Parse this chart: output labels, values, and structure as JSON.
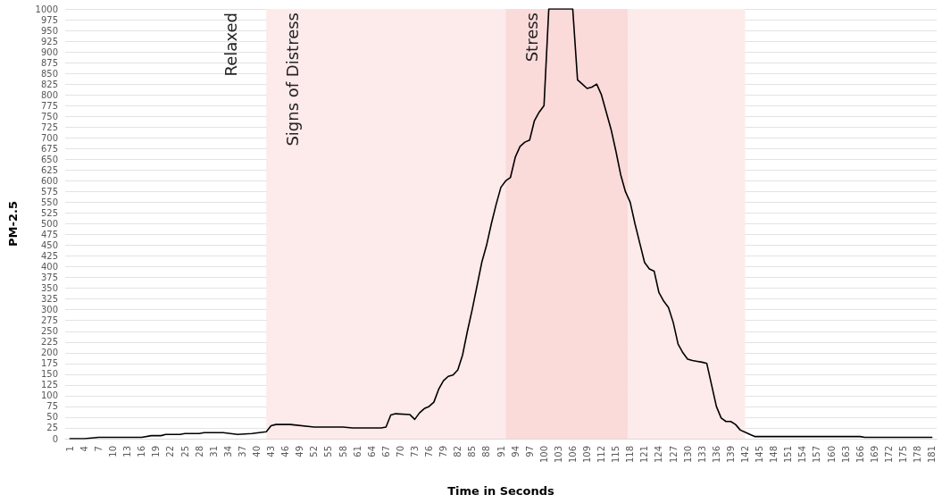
{
  "chart_data": {
    "type": "line",
    "xlabel": "Time in Seconds",
    "ylabel": "PM-2.5",
    "x": [
      1,
      4,
      7,
      16,
      18,
      20,
      21,
      24,
      25,
      28,
      29,
      33,
      36,
      39,
      42,
      43,
      44,
      47,
      52,
      58,
      60,
      66,
      67,
      68,
      69,
      72,
      73,
      74,
      75,
      76,
      77,
      78,
      79,
      80,
      81,
      82,
      83,
      84,
      85,
      86,
      87,
      88,
      89,
      90,
      91,
      92,
      93,
      94,
      95,
      96,
      97,
      98,
      99,
      100,
      101,
      106,
      107,
      108,
      109,
      110,
      111,
      112,
      113,
      114,
      115,
      116,
      117,
      118,
      119,
      120,
      121,
      122,
      123,
      124,
      125,
      126,
      127,
      128,
      129,
      130,
      131,
      132,
      133,
      134,
      135,
      136,
      137,
      138,
      139,
      140,
      141,
      142,
      143,
      144,
      166,
      167,
      181
    ],
    "series": [
      {
        "color": "#000000",
        "values": [
          0,
          0,
          3,
          3,
          7,
          7,
          10,
          10,
          12,
          12,
          14,
          14,
          10,
          12,
          16,
          30,
          33,
          33,
          27,
          27,
          25,
          25,
          27,
          55,
          58,
          56,
          45,
          60,
          70,
          75,
          85,
          115,
          135,
          145,
          148,
          160,
          195,
          250,
          300,
          355,
          410,
          450,
          500,
          545,
          585,
          600,
          608,
          655,
          680,
          690,
          695,
          740,
          760,
          775,
          1000,
          1000,
          835,
          825,
          815,
          818,
          825,
          800,
          760,
          720,
          670,
          615,
          575,
          550,
          500,
          455,
          410,
          395,
          390,
          340,
          320,
          305,
          270,
          220,
          200,
          185,
          182,
          180,
          178,
          175,
          125,
          75,
          48,
          40,
          40,
          33,
          20,
          15,
          10,
          5,
          5,
          3,
          3
        ]
      }
    ],
    "xlim": [
      0,
      182
    ],
    "xticks": [
      1,
      4,
      7,
      10,
      13,
      16,
      19,
      22,
      25,
      28,
      31,
      34,
      37,
      40,
      43,
      46,
      49,
      52,
      55,
      58,
      61,
      64,
      67,
      70,
      73,
      76,
      79,
      82,
      85,
      88,
      91,
      94,
      97,
      100,
      103,
      106,
      109,
      112,
      115,
      118,
      121,
      124,
      127,
      130,
      133,
      136,
      139,
      142,
      145,
      148,
      151,
      154,
      157,
      160,
      163,
      166,
      169,
      172,
      175,
      178,
      181
    ],
    "ylim": [
      0,
      1000
    ],
    "yticks": [
      0,
      25,
      50,
      75,
      100,
      125,
      150,
      175,
      200,
      225,
      250,
      275,
      300,
      325,
      350,
      375,
      400,
      425,
      450,
      475,
      500,
      525,
      550,
      575,
      600,
      625,
      650,
      675,
      700,
      725,
      750,
      775,
      800,
      825,
      850,
      875,
      900,
      925,
      950,
      975,
      1000
    ],
    "grid": "y",
    "marker": "none",
    "line_style": "solid",
    "bands": [
      {
        "axis": "x",
        "from": 42,
        "to": 92,
        "label": "Signs of Distress",
        "color": "#fdeaea"
      },
      {
        "axis": "x",
        "from": 92,
        "to": 117.5,
        "label": "Stress",
        "color": "#fbdada"
      },
      {
        "axis": "x",
        "from": 117.5,
        "to": 142,
        "color": "#fdeaea"
      }
    ],
    "annotations": [
      "Relaxed"
    ]
  }
}
